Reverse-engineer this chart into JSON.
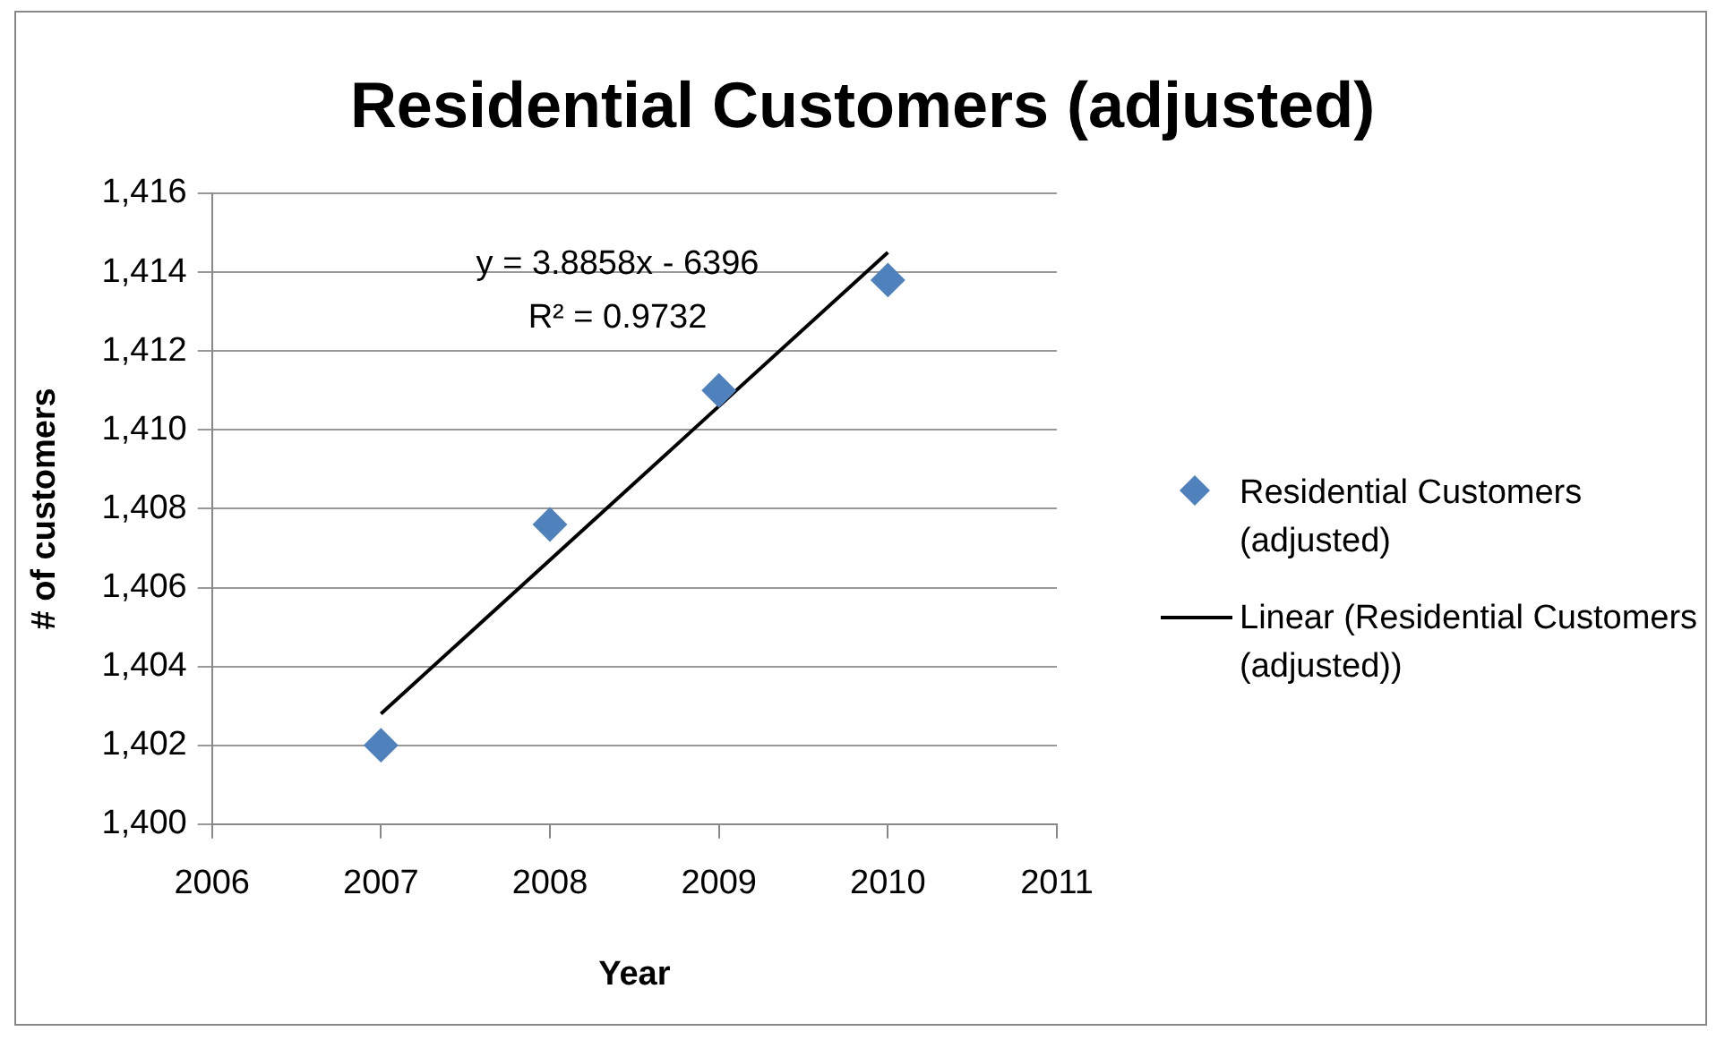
{
  "chart_data": {
    "type": "scatter",
    "title": "Residential Customers (adjusted)",
    "xlabel": "Year",
    "ylabel": "# of customers",
    "x": [
      2007,
      2008,
      2009,
      2010
    ],
    "series": [
      {
        "name": "Residential Customers (adjusted)",
        "color": "#4f81bd",
        "values": [
          1402.0,
          1407.6,
          1411.0,
          1413.8
        ],
        "marker": "diamond"
      },
      {
        "name": "Linear (Residential Customers (adjusted))",
        "type": "line",
        "color": "#000000",
        "x": [
          2007,
          2010
        ],
        "values": [
          1402.8,
          1414.5
        ],
        "marker": "none",
        "line_style": "solid"
      }
    ],
    "annotations": [
      "y = 3.8858x - 6396",
      "R² = 0.9732"
    ],
    "xlim": [
      2006,
      2011
    ],
    "xticks": [
      2006,
      2007,
      2008,
      2009,
      2010,
      2011
    ],
    "ylim": [
      1400,
      1416
    ],
    "yticks": [
      {
        "value": 1400,
        "label": "1,400"
      },
      {
        "value": 1402,
        "label": "1,402"
      },
      {
        "value": 1404,
        "label": "1,404"
      },
      {
        "value": 1406,
        "label": "1,406"
      },
      {
        "value": 1408,
        "label": "1,408"
      },
      {
        "value": 1410,
        "label": "1,410"
      },
      {
        "value": 1412,
        "label": "1,412"
      },
      {
        "value": 1414,
        "label": "1,414"
      },
      {
        "value": 1416,
        "label": "1,416"
      }
    ],
    "grid": "y",
    "legend": "right"
  }
}
